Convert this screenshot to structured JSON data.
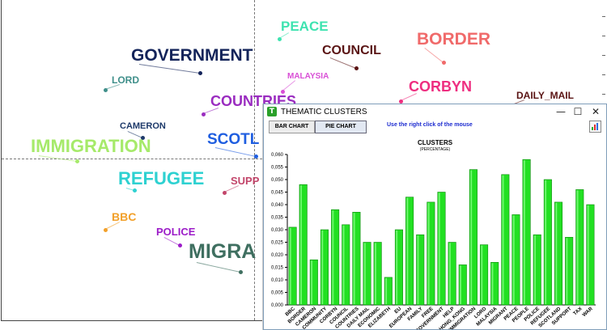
{
  "map": {
    "words": [
      {
        "text": "PEACE",
        "color": "#3ee3b0"
      },
      {
        "text": "BORDER",
        "color": "#f06a6a"
      },
      {
        "text": "COUNCIL",
        "color": "#5a1414"
      },
      {
        "text": "GOVERNMENT",
        "color": "#14245a"
      },
      {
        "text": "LORD",
        "color": "#3f8f8a"
      },
      {
        "text": "MALAYSIA",
        "color": "#d94fd6"
      },
      {
        "text": "CORBYN",
        "color": "#ee2e80"
      },
      {
        "text": "DAILY_MAIL",
        "color": "#5a1414"
      },
      {
        "text": "COUNTRIES",
        "color": "#9a2cc0"
      },
      {
        "text": "CAMERON",
        "color": "#1e3a6a"
      },
      {
        "text": "SCOTL",
        "color": "#1f5ee0"
      },
      {
        "text": "IMMIGRATION",
        "color": "#a6ea6a"
      },
      {
        "text": "REFUGEE",
        "color": "#2ed1d1"
      },
      {
        "text": "SUPP",
        "color": "#c2456a"
      },
      {
        "text": "BBC",
        "color": "#f2a02a"
      },
      {
        "text": "POLICE",
        "color": "#9c1cc8"
      },
      {
        "text": "MIGRA",
        "color": "#3f6f60"
      }
    ]
  },
  "window": {
    "title": "THEMATIC CLUSTERS",
    "app_icon": "app-icon",
    "controls": {
      "minimize": "—",
      "maximize": "☐",
      "close": "✕"
    },
    "toolbar": {
      "bar_chart": "BAR CHART",
      "pie_chart": "PIE CHART",
      "active": "PIE CHART"
    },
    "hint": "Use the right click of the mouse",
    "tool_icon": "chart-settings-icon"
  },
  "chart_data": {
    "type": "bar",
    "title": "CLUSTERS",
    "subtitle": "(PERCENTAGE)",
    "bar_color": "#22e022",
    "ylim": [
      0,
      0.06
    ],
    "yticks": [
      "0,000",
      "0,005",
      "0,010",
      "0,015",
      "0,020",
      "0,025",
      "0,030",
      "0,035",
      "0,040",
      "0,045",
      "0,050",
      "0,055",
      "0,060"
    ],
    "categories": [
      "BBC",
      "BORDER",
      "CAMERON",
      "COMMUNITY",
      "CORBYN",
      "COUNCIL",
      "COUNTRIES",
      "DAILY MAIL",
      "ECONOMIC",
      "ELIZABETH",
      "EU",
      "EUROPEAN",
      "FAMILY",
      "FREE",
      "GOVERNMENT",
      "HELP",
      "HONG_KONG",
      "IMMIGRATION",
      "LORD",
      "MALAYSIA",
      "MIGRANT",
      "PEACE",
      "PEOPLE",
      "POLICE",
      "REFUGEE",
      "SCOTLAND",
      "SUPPORT",
      "TAX",
      "WAR"
    ],
    "values": [
      0.031,
      0.048,
      0.018,
      0.03,
      0.038,
      0.032,
      0.037,
      0.025,
      0.025,
      0.011,
      0.03,
      0.043,
      0.028,
      0.041,
      0.045,
      0.025,
      0.016,
      0.054,
      0.024,
      0.017,
      0.052,
      0.036,
      0.058,
      0.028,
      0.05,
      0.041,
      0.027,
      0.046,
      0.04
    ]
  }
}
